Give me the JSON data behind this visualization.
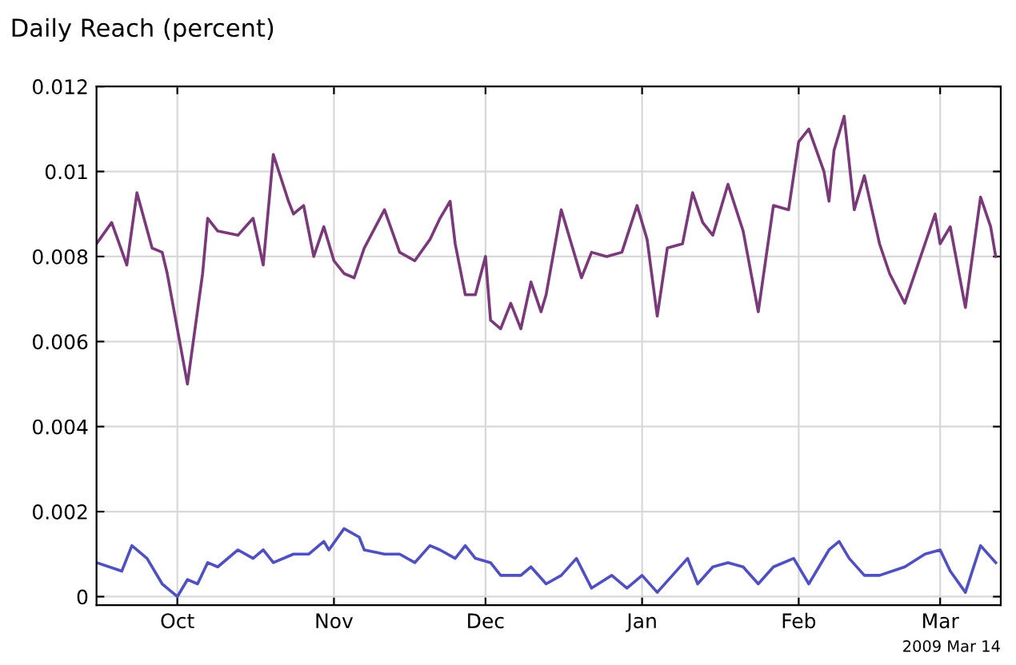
{
  "chart_data": {
    "type": "line",
    "title": "Daily Reach (percent)",
    "annotations": [
      "2009 Mar 14"
    ],
    "xlim": [
      "2008-09-15",
      "2009-03-13"
    ],
    "ylim": [
      -0.0002,
      0.012
    ],
    "xticks": [
      {
        "value": "2008-10-01",
        "label": "Oct"
      },
      {
        "value": "2008-11-01",
        "label": "Nov"
      },
      {
        "value": "2008-12-01",
        "label": "Dec"
      },
      {
        "value": "2009-01-01",
        "label": "Jan"
      },
      {
        "value": "2009-02-01",
        "label": "Feb"
      },
      {
        "value": "2009-03-01",
        "label": "Mar"
      }
    ],
    "yticks": [
      0,
      0.002,
      0.004,
      0.006,
      0.008,
      0.01,
      0.012
    ],
    "grid": true,
    "marker": "none",
    "line_style": "solid",
    "series": [
      {
        "color": "#7a3a7a",
        "x": [
          "2008-09-15",
          "2008-09-18",
          "2008-09-21",
          "2008-09-23",
          "2008-09-26",
          "2008-09-28",
          "2008-09-29",
          "2008-10-03",
          "2008-10-06",
          "2008-10-07",
          "2008-10-09",
          "2008-10-13",
          "2008-10-16",
          "2008-10-18",
          "2008-10-19",
          "2008-10-20",
          "2008-10-23",
          "2008-10-24",
          "2008-10-26",
          "2008-10-28",
          "2008-10-30",
          "2008-11-01",
          "2008-11-03",
          "2008-11-05",
          "2008-11-07",
          "2008-11-11",
          "2008-11-14",
          "2008-11-17",
          "2008-11-20",
          "2008-11-22",
          "2008-11-24",
          "2008-11-25",
          "2008-11-27",
          "2008-11-29",
          "2008-12-01",
          "2008-12-02",
          "2008-12-04",
          "2008-12-06",
          "2008-12-08",
          "2008-12-10",
          "2008-12-12",
          "2008-12-13",
          "2008-12-16",
          "2008-12-20",
          "2008-12-22",
          "2008-12-25",
          "2008-12-28",
          "2008-12-31",
          "2009-01-02",
          "2009-01-04",
          "2009-01-06",
          "2009-01-09",
          "2009-01-11",
          "2009-01-13",
          "2009-01-15",
          "2009-01-18",
          "2009-01-21",
          "2009-01-24",
          "2009-01-27",
          "2009-01-30",
          "2009-02-01",
          "2009-02-03",
          "2009-02-06",
          "2009-02-07",
          "2009-02-08",
          "2009-02-10",
          "2009-02-12",
          "2009-02-14",
          "2009-02-17",
          "2009-02-19",
          "2009-02-22",
          "2009-02-26",
          "2009-02-28",
          "2009-03-01",
          "2009-03-03",
          "2009-03-06",
          "2009-03-09",
          "2009-03-11",
          "2009-03-12"
        ],
        "values": [
          0.0083,
          0.0088,
          0.0078,
          0.0095,
          0.0082,
          0.0081,
          0.0076,
          0.005,
          0.0076,
          0.0089,
          0.0086,
          0.0085,
          0.0089,
          0.0078,
          0.0091,
          0.0104,
          0.0093,
          0.009,
          0.0092,
          0.008,
          0.0087,
          0.0079,
          0.0076,
          0.0075,
          0.0082,
          0.0091,
          0.0081,
          0.0079,
          0.0084,
          0.0089,
          0.0093,
          0.0083,
          0.0071,
          0.0071,
          0.008,
          0.0065,
          0.0063,
          0.0069,
          0.0063,
          0.0074,
          0.0067,
          0.0071,
          0.0091,
          0.0075,
          0.0081,
          0.008,
          0.0081,
          0.0092,
          0.0084,
          0.0066,
          0.0082,
          0.0083,
          0.0095,
          0.0088,
          0.0085,
          0.0097,
          0.0086,
          0.0067,
          0.0092,
          0.0091,
          0.0107,
          0.011,
          0.01,
          0.0093,
          0.0105,
          0.0113,
          0.0091,
          0.0099,
          0.0083,
          0.0076,
          0.0069,
          0.0083,
          0.009,
          0.0083,
          0.0087,
          0.0068,
          0.0094,
          0.0087,
          0.008
        ]
      },
      {
        "color": "#5050c0",
        "x": [
          "2008-09-15",
          "2008-09-20",
          "2008-09-22",
          "2008-09-25",
          "2008-09-28",
          "2008-10-01",
          "2008-10-03",
          "2008-10-05",
          "2008-10-07",
          "2008-10-09",
          "2008-10-13",
          "2008-10-16",
          "2008-10-18",
          "2008-10-20",
          "2008-10-24",
          "2008-10-27",
          "2008-10-30",
          "2008-10-31",
          "2008-11-03",
          "2008-11-06",
          "2008-11-07",
          "2008-11-11",
          "2008-11-14",
          "2008-11-17",
          "2008-11-20",
          "2008-11-22",
          "2008-11-25",
          "2008-11-27",
          "2008-11-29",
          "2008-12-02",
          "2008-12-04",
          "2008-12-08",
          "2008-12-10",
          "2008-12-13",
          "2008-12-16",
          "2008-12-19",
          "2008-12-22",
          "2008-12-26",
          "2008-12-29",
          "2009-01-01",
          "2009-01-04",
          "2009-01-07",
          "2009-01-10",
          "2009-01-12",
          "2009-01-15",
          "2009-01-18",
          "2009-01-21",
          "2009-01-24",
          "2009-01-27",
          "2009-01-31",
          "2009-02-03",
          "2009-02-07",
          "2009-02-09",
          "2009-02-11",
          "2009-02-14",
          "2009-02-17",
          "2009-02-22",
          "2009-02-26",
          "2009-03-01",
          "2009-03-03",
          "2009-03-06",
          "2009-03-09",
          "2009-03-12"
        ],
        "values": [
          0.0008,
          0.0006,
          0.0012,
          0.0009,
          0.0003,
          0.0,
          0.0004,
          0.0003,
          0.0008,
          0.0007,
          0.0011,
          0.0009,
          0.0011,
          0.0008,
          0.001,
          0.001,
          0.0013,
          0.0011,
          0.0016,
          0.0014,
          0.0011,
          0.001,
          0.001,
          0.0008,
          0.0012,
          0.0011,
          0.0009,
          0.0012,
          0.0009,
          0.0008,
          0.0005,
          0.0005,
          0.0007,
          0.0003,
          0.0005,
          0.0009,
          0.0002,
          0.0005,
          0.0002,
          0.0005,
          0.0001,
          0.0005,
          0.0009,
          0.0003,
          0.0007,
          0.0008,
          0.0007,
          0.0003,
          0.0007,
          0.0009,
          0.0003,
          0.0011,
          0.0013,
          0.0009,
          0.0005,
          0.0005,
          0.0007,
          0.001,
          0.0011,
          0.0006,
          0.0001,
          0.0012,
          0.0008
        ]
      }
    ]
  }
}
